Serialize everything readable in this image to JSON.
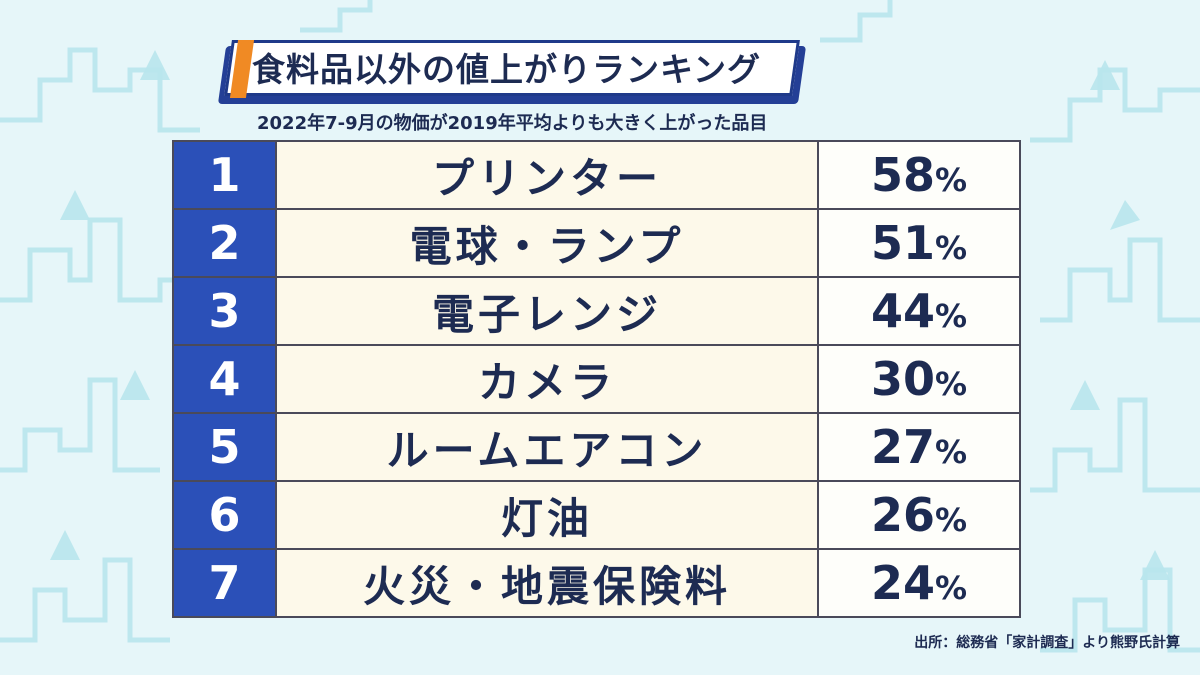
{
  "title": "食料品以外の値上がりランキング",
  "subtitle": "2022年7-9月の物価が2019年平均よりも大きく上がった品目",
  "rankings": [
    {
      "rank": "1",
      "item": "プリンター",
      "value": "58",
      "unit": "%"
    },
    {
      "rank": "2",
      "item": "電球・ランプ",
      "value": "51",
      "unit": "%"
    },
    {
      "rank": "3",
      "item": "電子レンジ",
      "value": "44",
      "unit": "%"
    },
    {
      "rank": "4",
      "item": "カメラ",
      "value": "30",
      "unit": "%"
    },
    {
      "rank": "5",
      "item": "ルームエアコン",
      "value": "27",
      "unit": "%"
    },
    {
      "rank": "6",
      "item": "灯油",
      "value": "26",
      "unit": "%"
    },
    {
      "rank": "7",
      "item": "火災・地震保険料",
      "value": "24",
      "unit": "%"
    }
  ],
  "source": "出所：総務省「家計調査」より熊野氏計算",
  "colors": {
    "background": "#e6f6f9",
    "rank_background": "#2b50b8",
    "item_background": "#fdf9ea",
    "text": "#1d2b52",
    "title_accent": "#f08a24"
  }
}
